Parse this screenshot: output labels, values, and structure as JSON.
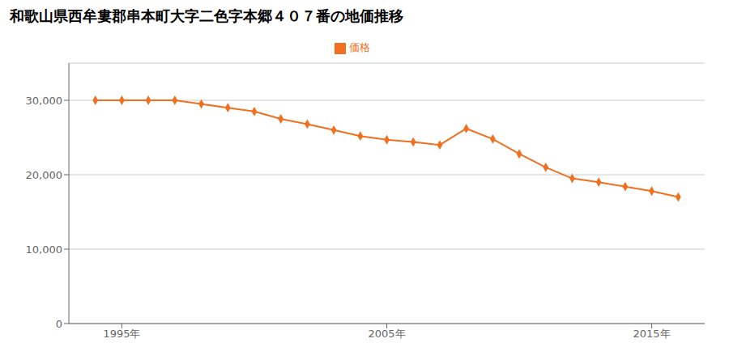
{
  "chart_data": {
    "type": "line",
    "title": "和歌山県西牟婁郡串本町大字二色字本郷４０７番の地価推移",
    "x": [
      1994,
      1995,
      1996,
      1997,
      1998,
      1999,
      2000,
      2001,
      2002,
      2003,
      2004,
      2005,
      2006,
      2007,
      2008,
      2009,
      2010,
      2011,
      2012,
      2013,
      2014,
      2015,
      2016
    ],
    "series": [
      {
        "name": "価格",
        "color": "#f07020",
        "marker": "diamond",
        "values": [
          30000,
          30000,
          30000,
          30000,
          29500,
          29000,
          28500,
          27500,
          26800,
          26000,
          25200,
          24700,
          24400,
          24000,
          26200,
          24800,
          22800,
          21000,
          19500,
          19000,
          18400,
          17800,
          17000
        ]
      }
    ],
    "xlim": [
      1993,
      2017
    ],
    "xticks": [
      {
        "value": 1995,
        "label": "1995年"
      },
      {
        "value": 2005,
        "label": "2005年"
      },
      {
        "value": 2015,
        "label": "2015年"
      }
    ],
    "ylim": [
      0,
      35000
    ],
    "yticks": [
      0,
      {
        "value": 10000,
        "label": "10,000"
      },
      {
        "value": 20000,
        "label": "20,000"
      },
      {
        "value": 30000,
        "label": "30,000"
      }
    ],
    "grid": true,
    "legend": "top"
  }
}
